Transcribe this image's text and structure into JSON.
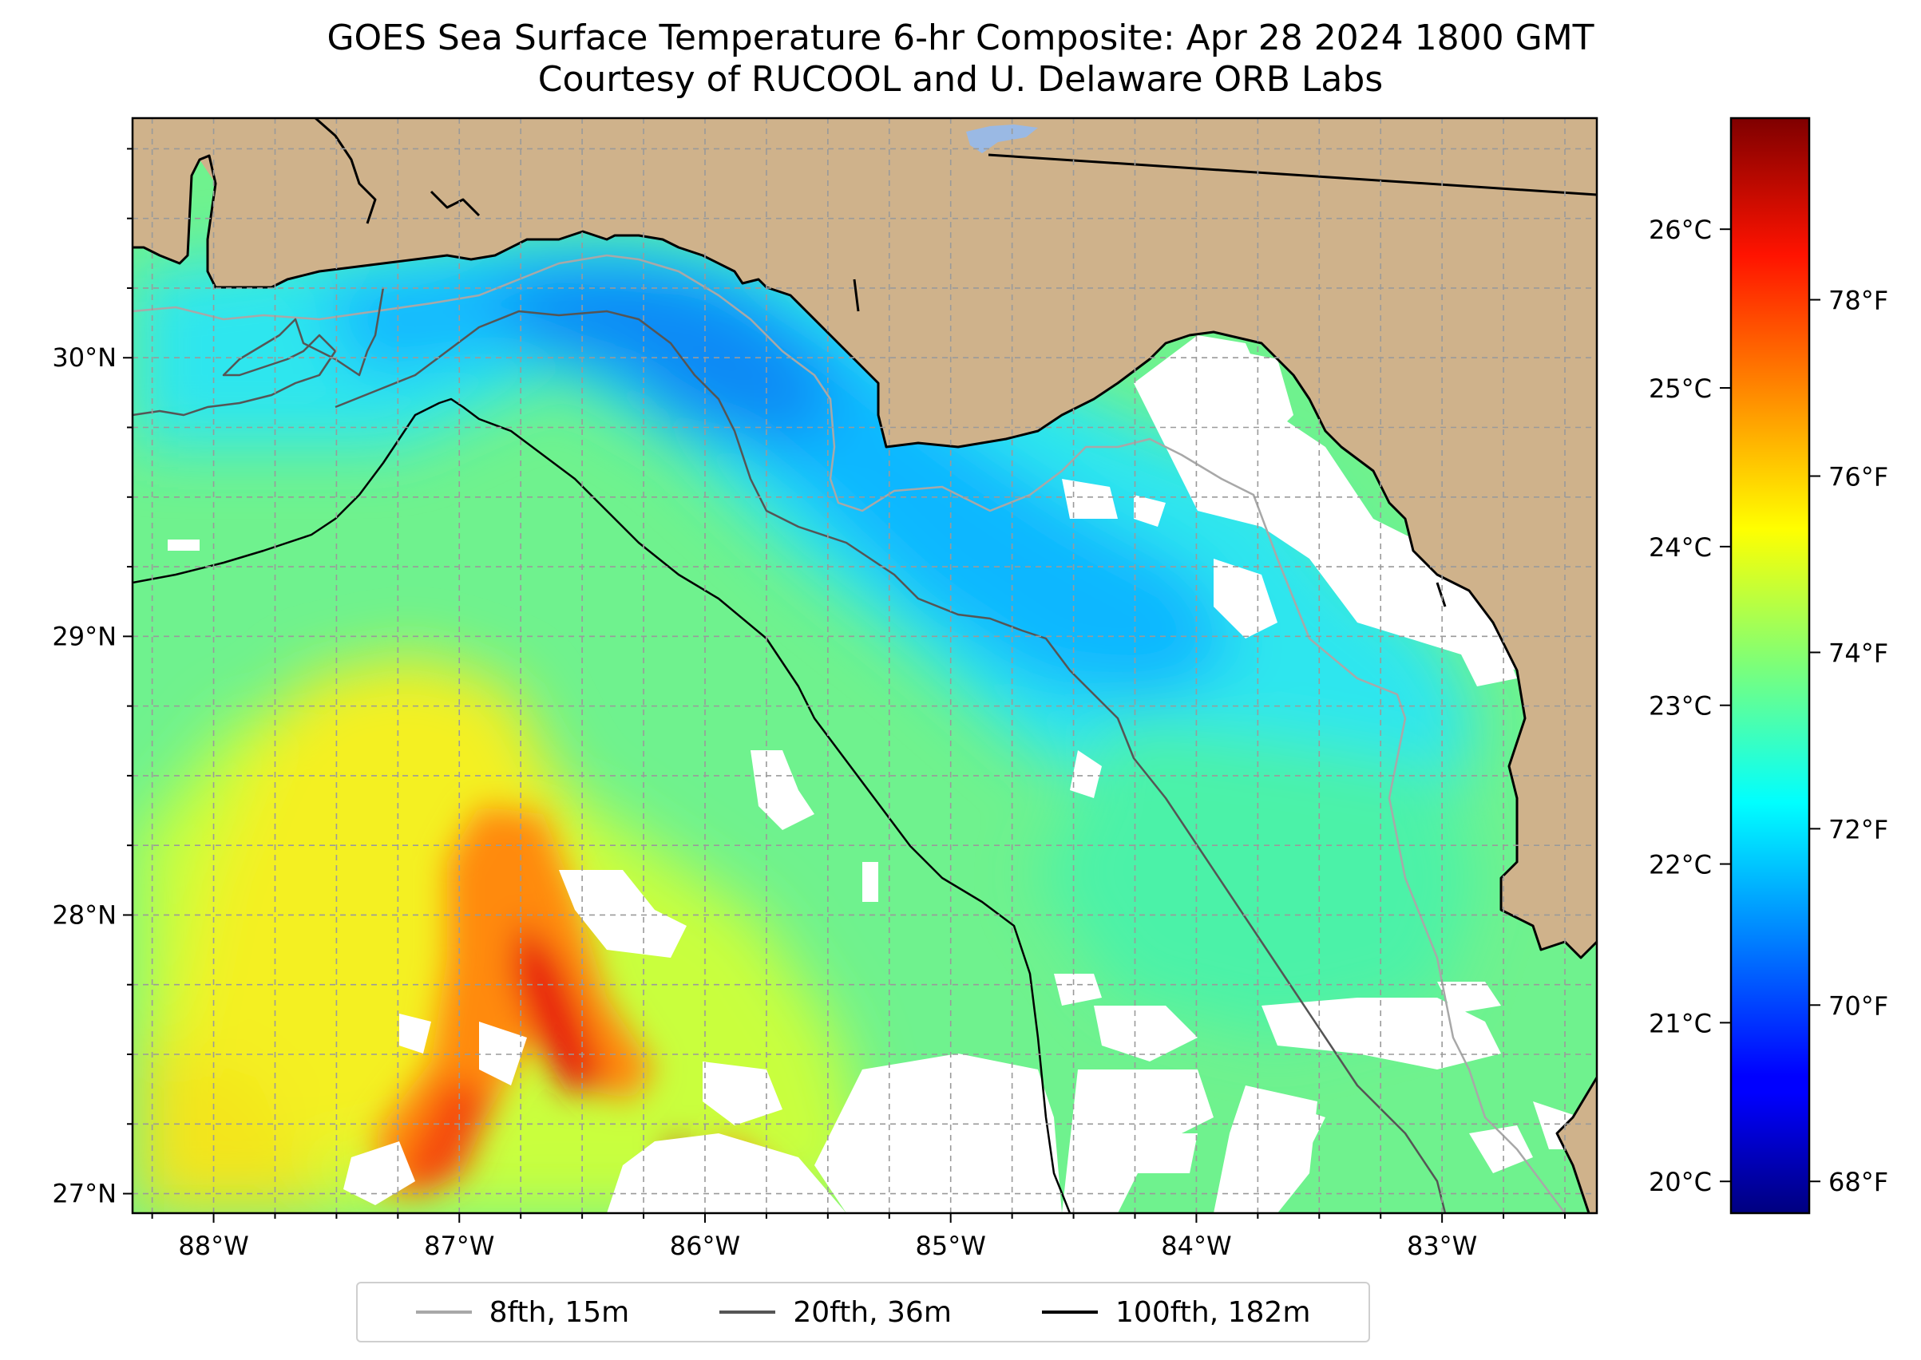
{
  "title": {
    "line1": "GOES Sea Surface Temperature 6-hr Composite: Apr 28 2024 1800 GMT",
    "line2": "Courtesy of RUCOOL and U. Delaware ORB Labs"
  },
  "map": {
    "lon_range": [
      -88.33,
      -82.37
    ],
    "lat_range": [
      26.93,
      30.86
    ],
    "lon_ticks": [
      {
        "value": -88,
        "label": "88°W"
      },
      {
        "value": -87,
        "label": "87°W"
      },
      {
        "value": -86,
        "label": "86°W"
      },
      {
        "value": -85,
        "label": "85°W"
      },
      {
        "value": -84,
        "label": "84°W"
      },
      {
        "value": -83,
        "label": "83°W"
      }
    ],
    "lat_ticks": [
      {
        "value": 27,
        "label": "27°N"
      },
      {
        "value": 28,
        "label": "28°N"
      },
      {
        "value": 29,
        "label": "29°N"
      },
      {
        "value": 30,
        "label": "30°N"
      }
    ],
    "colors": {
      "land": "#cfb28b",
      "no_data": "#ffffff",
      "coast": "#000000",
      "lake": "#9ab9e4",
      "grid": "#9a9a9a"
    }
  },
  "colorbar": {
    "colormap": "jet",
    "celsius_range": [
      19.8,
      26.7
    ],
    "celsius_ticks": [
      {
        "value": 20,
        "label": "20°C"
      },
      {
        "value": 21,
        "label": "21°C"
      },
      {
        "value": 22,
        "label": "22°C"
      },
      {
        "value": 23,
        "label": "23°C"
      },
      {
        "value": 24,
        "label": "24°C"
      },
      {
        "value": 25,
        "label": "25°C"
      },
      {
        "value": 26,
        "label": "26°C"
      }
    ],
    "fahrenheit_ticks": [
      {
        "value": 68,
        "label": "68°F"
      },
      {
        "value": 70,
        "label": "70°F"
      },
      {
        "value": 72,
        "label": "72°F"
      },
      {
        "value": 74,
        "label": "74°F"
      },
      {
        "value": 76,
        "label": "76°F"
      },
      {
        "value": 78,
        "label": "78°F"
      }
    ]
  },
  "legend": {
    "items": [
      {
        "label": "8fth, 15m",
        "color": "#a8a8a8"
      },
      {
        "label": "20fth, 36m",
        "color": "#555555"
      },
      {
        "label": "100fth, 182m",
        "color": "#000000"
      }
    ]
  }
}
